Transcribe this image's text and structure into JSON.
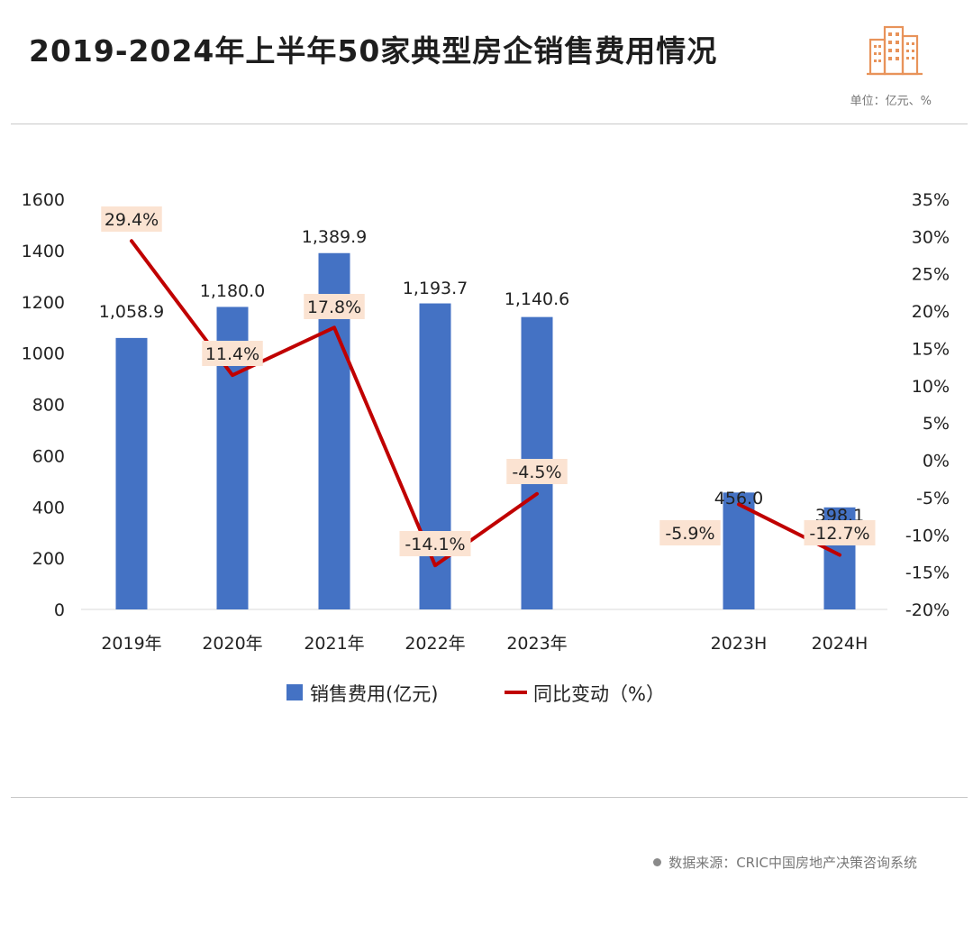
{
  "header": {
    "title": "2019-2024年上半年50家典型房企销售费用情况",
    "unit": "单位：亿元、%",
    "logo_icon": "building-icon",
    "logo_color": "#E8935A"
  },
  "footer": {
    "source": "数据来源：CRIC中国房地产决策咨询系统"
  },
  "colors": {
    "bar": "#4472C4",
    "line": "#C00000",
    "label_bg": "#FBE3D2"
  },
  "chart_data": {
    "type": "bar",
    "categories": [
      "2019年",
      "2020年",
      "2021年",
      "2022年",
      "2023年",
      "2023H",
      "2024H"
    ],
    "series": [
      {
        "name": "销售费用(亿元)",
        "type": "bar",
        "axis": "left",
        "values": [
          1058.9,
          1180.0,
          1389.9,
          1193.7,
          1140.6,
          456.0,
          398.1
        ],
        "labels": [
          "1,058.9",
          "1,180.0",
          "1,389.9",
          "1,193.7",
          "1,140.6",
          "456.0",
          "398.1"
        ]
      },
      {
        "name": "同比变动（%）",
        "type": "line",
        "axis": "right",
        "segments": [
          [
            0,
            4
          ],
          [
            5,
            6
          ]
        ],
        "values": [
          29.4,
          11.4,
          17.8,
          -14.1,
          -4.5,
          -5.9,
          -12.7
        ],
        "labels": [
          "29.4%",
          "11.4%",
          "17.8%",
          "-14.1%",
          "-4.5%",
          "-5.9%",
          "-12.7%"
        ]
      }
    ],
    "y_left": {
      "min": 0,
      "max": 1600,
      "ticks": [
        "0",
        "200",
        "400",
        "600",
        "800",
        "1000",
        "1200",
        "1400",
        "1600"
      ]
    },
    "y_right": {
      "min": -20,
      "max": 35,
      "ticks": [
        "-20%",
        "-15%",
        "-10%",
        "-5%",
        "0%",
        "5%",
        "10%",
        "15%",
        "20%",
        "25%",
        "30%",
        "35%"
      ]
    },
    "legend": [
      "销售费用(亿元)",
      "同比变动（%）"
    ],
    "legend_position": "bottom",
    "grid": false
  }
}
